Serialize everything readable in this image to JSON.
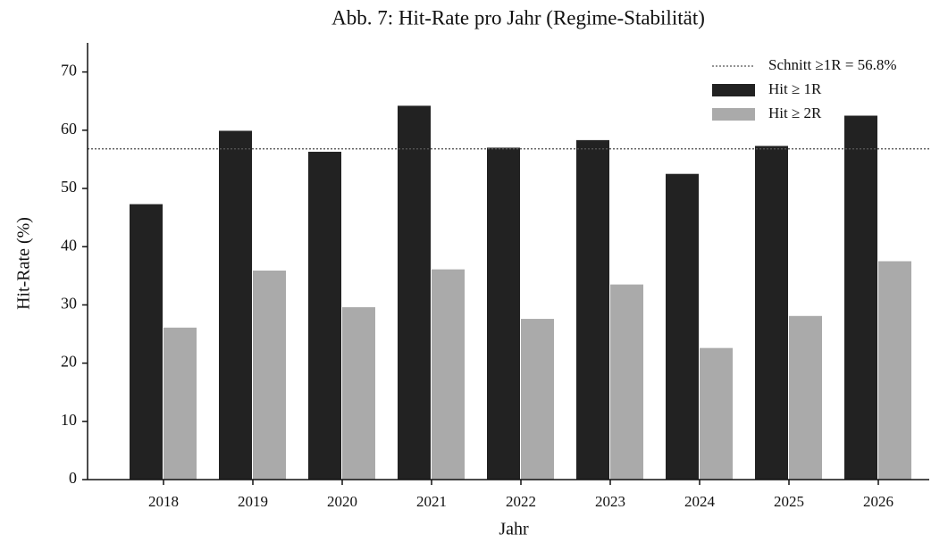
{
  "chart_data": {
    "type": "bar",
    "title": "Abb. 7: Hit-Rate pro Jahr (Regime-Stabilität)",
    "x_label": "Jahr",
    "y_label": "Hit-Rate (%)",
    "categories": [
      "2018",
      "2019",
      "2020",
      "2021",
      "2022",
      "2023",
      "2024",
      "2025",
      "2026"
    ],
    "series": [
      {
        "name": "Hit ≥ 1R",
        "color": "#222222",
        "values": [
          47.3,
          59.9,
          56.3,
          64.2,
          57.0,
          58.3,
          52.5,
          57.3,
          62.5
        ]
      },
      {
        "name": "Hit ≥ 2R",
        "color": "#aaaaaa",
        "values": [
          26.1,
          35.9,
          29.6,
          36.1,
          27.6,
          33.5,
          22.6,
          28.1,
          37.5
        ]
      }
    ],
    "reference_line": {
      "value": 56.8,
      "label": "Schnitt ≥1R = 56.8%",
      "color": "#555555"
    },
    "ylim": [
      0,
      75
    ],
    "yticks": [
      0,
      10,
      20,
      30,
      40,
      50,
      60,
      70
    ],
    "legend": "upper right",
    "grid": false
  }
}
